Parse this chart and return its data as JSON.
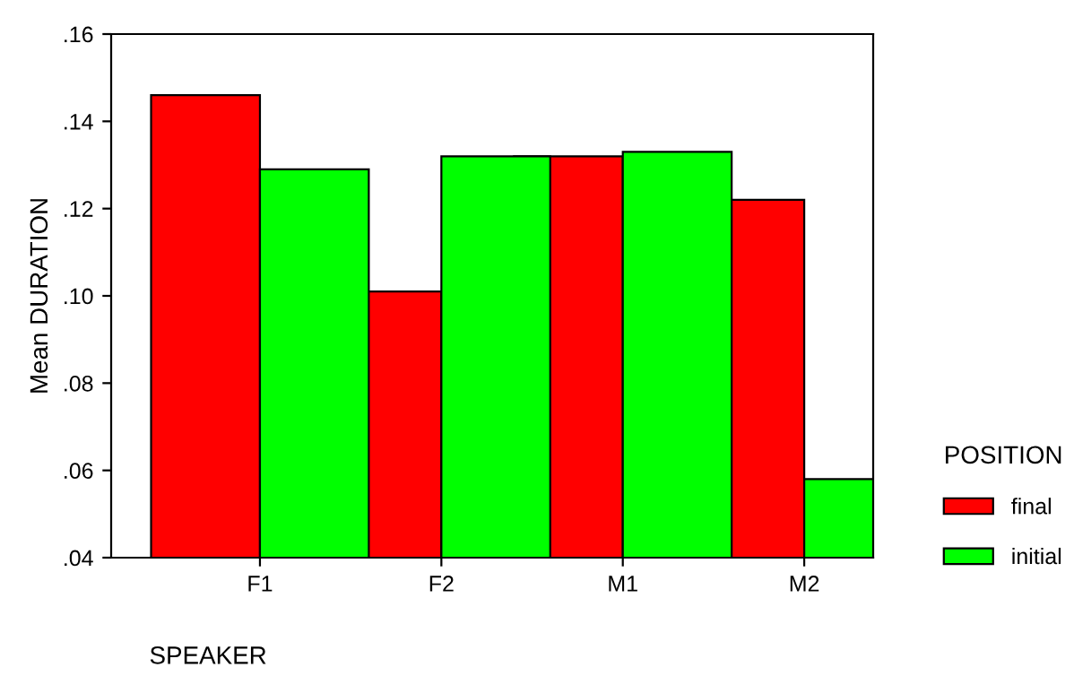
{
  "chart_data": {
    "type": "bar",
    "xlabel": "SPEAKER",
    "ylabel": "Mean DURATION",
    "legend_title": "POSITION",
    "categories": [
      "F1",
      "F2",
      "M1",
      "M2"
    ],
    "series": [
      {
        "name": "final",
        "color": "#ff0000",
        "values": [
          0.146,
          0.101,
          0.132,
          0.122
        ]
      },
      {
        "name": "initial",
        "color": "#00ff00",
        "values": [
          0.129,
          0.132,
          0.133,
          0.058
        ]
      }
    ],
    "ylim": [
      0.04,
      0.16
    ],
    "yticks": [
      {
        "value": 0.04,
        "label": ".04"
      },
      {
        "value": 0.06,
        "label": ".06"
      },
      {
        "value": 0.08,
        "label": ".08"
      },
      {
        "value": 0.1,
        "label": ".10"
      },
      {
        "value": 0.12,
        "label": ".12"
      },
      {
        "value": 0.14,
        "label": ".14"
      },
      {
        "value": 0.16,
        "label": ".16"
      }
    ],
    "grid": false,
    "legend": "right"
  }
}
